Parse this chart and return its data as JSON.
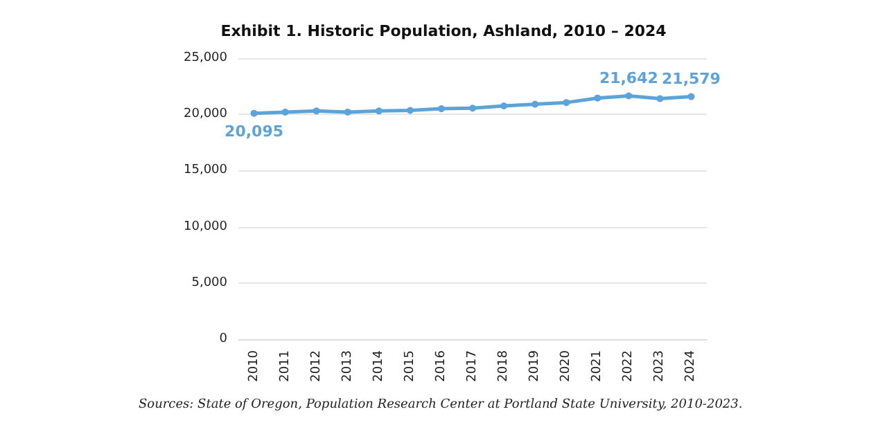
{
  "chart_data": {
    "type": "line",
    "title": "Exhibit 1. Historic Population, Ashland, 2010 – 2024",
    "categories": [
      "2010",
      "2011",
      "2012",
      "2013",
      "2014",
      "2015",
      "2016",
      "2017",
      "2018",
      "2019",
      "2020",
      "2021",
      "2022",
      "2023",
      "2024"
    ],
    "series": [
      {
        "color": "#5ba3d9",
        "values": [
          20095,
          20200,
          20300,
          20200,
          20300,
          20350,
          20500,
          20550,
          20750,
          20900,
          21050,
          21450,
          21642,
          21400,
          21579
        ],
        "value_labels": [
          "20,095",
          null,
          null,
          null,
          null,
          null,
          null,
          null,
          null,
          null,
          null,
          null,
          "21,642",
          null,
          "21,579"
        ]
      }
    ],
    "ylim": [
      0,
      25000
    ],
    "yticks": [
      0,
      {
        "value": 5000,
        "label": "5,000"
      },
      {
        "value": 10000,
        "label": "10,000"
      },
      {
        "value": 15000,
        "label": "15,000"
      },
      {
        "value": 20000,
        "label": "20,000"
      },
      {
        "value": 25000,
        "label": "25,000"
      }
    ],
    "grid": "y",
    "marker": "circle",
    "line_style": "solid",
    "annotations": [
      "Sources: State of Oregon, Population Research Center at Portland State University, 2010-2023."
    ]
  }
}
